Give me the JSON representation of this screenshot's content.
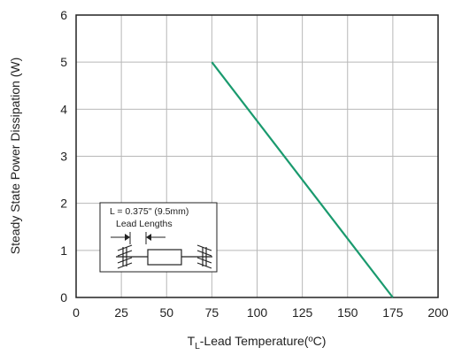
{
  "chart_data": {
    "type": "line",
    "title": "",
    "ylabel": "Steady State Power Dissipation (W)",
    "xlabel": {
      "prefix": "T",
      "subscript": "L",
      "suffix": "-Lead Temperature(ºC)"
    },
    "xlim": [
      0,
      200
    ],
    "ylim": [
      0,
      6
    ],
    "x_ticks": [
      0,
      25,
      50,
      75,
      100,
      125,
      150,
      175,
      200
    ],
    "y_ticks": [
      0,
      1,
      2,
      3,
      4,
      5,
      6
    ],
    "grid": true,
    "series": [
      {
        "color": "#1a9a6e",
        "points": [
          {
            "x": 75,
            "y": 5
          },
          {
            "x": 175,
            "y": 0
          }
        ]
      }
    ],
    "annotation": {
      "line1": "L = 0.375\" (9.5mm)",
      "line2": "Lead Lengths"
    }
  }
}
